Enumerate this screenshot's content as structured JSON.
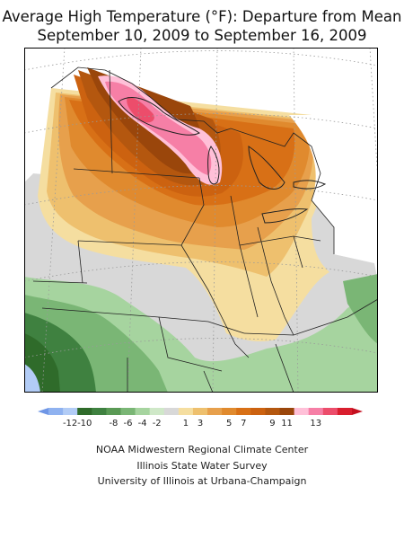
{
  "title": {
    "line1": "Average High Temperature (°F): Departure from Mean",
    "line2": "September 10, 2009 to September 16, 2009"
  },
  "legend": {
    "labels": [
      "-12",
      "-10",
      "-8",
      "-6",
      "-4",
      "-2",
      "1",
      "3",
      "5",
      "7",
      "9",
      "11",
      "13"
    ],
    "colors": [
      "#8fb2f0",
      "#b2ccf6",
      "#2f6b2a",
      "#3f8140",
      "#5a9a55",
      "#7ab675",
      "#a6d49f",
      "#cfe8c8",
      "#d8d8d8",
      "#f5dea0",
      "#eec06e",
      "#e7a04c",
      "#e08a2e",
      "#d87016",
      "#cc6210",
      "#b4570f",
      "#9a460b",
      "#ffc0d8",
      "#f67fa6",
      "#ec4d6b",
      "#d91e2e"
    ]
  },
  "credits": {
    "line1": "NOAA Midwestern Regional Climate Center",
    "line2": "Illinois State Water Survey",
    "line3": "University of Illinois at Urbana-Champaign"
  }
}
